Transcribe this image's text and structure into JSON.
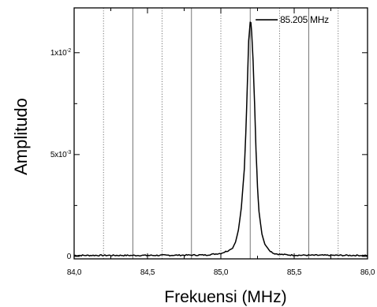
{
  "chart_data": {
    "type": "line",
    "xlabel": "Frekuensi (MHz)",
    "ylabel": "Amplitudo",
    "xlim": [
      84.0,
      86.0
    ],
    "ylim": [
      -0.00012,
      0.0122
    ],
    "x_ticks": [
      {
        "value": 84.0,
        "label": "84,0"
      },
      {
        "value": 84.5,
        "label": "84,5"
      },
      {
        "value": 85.0,
        "label": "85,0"
      },
      {
        "value": 85.5,
        "label": "85,5"
      },
      {
        "value": 86.0,
        "label": "86,0"
      }
    ],
    "y_ticks": [
      {
        "value": 0,
        "mantissa": "0",
        "exponent": ""
      },
      {
        "value": 0.005,
        "mantissa": "5x10",
        "exponent": "-3"
      },
      {
        "value": 0.01,
        "mantissa": "1x10",
        "exponent": "-2"
      }
    ],
    "gridlines_x": [
      84.2,
      84.4,
      84.6,
      84.8,
      85.0,
      85.2,
      85.4,
      85.6,
      85.8
    ],
    "series": [
      {
        "color": "#000000",
        "x": [
          84.0,
          84.5,
          84.9,
          85.0,
          85.05,
          85.08,
          85.1,
          85.12,
          85.14,
          85.16,
          85.17,
          85.18,
          85.19,
          85.2,
          85.205,
          85.21,
          85.22,
          85.23,
          85.24,
          85.25,
          85.26,
          85.28,
          85.3,
          85.33,
          85.36,
          85.4,
          85.5,
          86.0
        ],
        "y": [
          5e-05,
          5e-05,
          7e-05,
          0.00015,
          0.00028,
          0.0004,
          0.0007,
          0.0013,
          0.0024,
          0.0043,
          0.006,
          0.0083,
          0.0106,
          0.0115,
          0.01148,
          0.011,
          0.0096,
          0.0075,
          0.0052,
          0.0034,
          0.0022,
          0.0011,
          0.0006,
          0.0003,
          0.00015,
          0.0001,
          6e-05,
          5e-05
        ]
      }
    ],
    "annotations": [
      {
        "text": "85.205 MHz",
        "x": 85.205,
        "y": 0.0115
      }
    ],
    "grid": "vertical-dotted"
  }
}
